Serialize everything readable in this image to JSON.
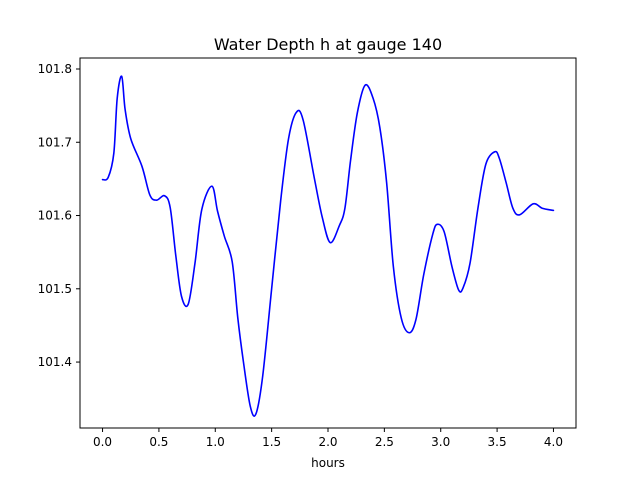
{
  "chart_data": {
    "type": "line",
    "title": "Water Depth h at gauge 140",
    "xlabel": "hours",
    "ylabel": "",
    "xlim": [
      -0.2,
      4.2
    ],
    "ylim": [
      101.31,
      101.815
    ],
    "x_ticks": [
      0.0,
      0.5,
      1.0,
      1.5,
      2.0,
      2.5,
      3.0,
      3.5,
      4.0
    ],
    "x_tick_labels": [
      "0.0",
      "0.5",
      "1.0",
      "1.5",
      "2.0",
      "2.5",
      "3.0",
      "3.5",
      "4.0"
    ],
    "y_ticks": [
      101.4,
      101.5,
      101.6,
      101.7,
      101.8
    ],
    "y_tick_labels": [
      "101.4",
      "101.5",
      "101.6",
      "101.7",
      "101.8"
    ],
    "grid": false,
    "legend": "none",
    "series": [
      {
        "color": "#0000ff",
        "x": [
          0.0,
          0.05,
          0.1,
          0.13,
          0.17,
          0.2,
          0.25,
          0.35,
          0.42,
          0.48,
          0.55,
          0.6,
          0.65,
          0.7,
          0.76,
          0.82,
          0.88,
          0.97,
          1.02,
          1.08,
          1.15,
          1.2,
          1.25,
          1.31,
          1.36,
          1.42,
          1.5,
          1.58,
          1.65,
          1.72,
          1.78,
          1.88,
          1.95,
          2.02,
          2.1,
          2.15,
          2.2,
          2.26,
          2.33,
          2.4,
          2.46,
          2.52,
          2.58,
          2.65,
          2.72,
          2.78,
          2.85,
          2.93,
          2.97,
          3.03,
          3.1,
          3.16,
          3.2,
          3.26,
          3.33,
          3.4,
          3.48,
          3.52,
          3.58,
          3.64,
          3.7,
          3.82,
          3.9,
          4.0
        ],
        "y": [
          101.649,
          101.652,
          101.685,
          101.76,
          101.79,
          101.745,
          101.705,
          101.667,
          101.628,
          101.621,
          101.627,
          101.611,
          101.545,
          101.49,
          101.479,
          101.535,
          101.608,
          101.64,
          101.606,
          101.572,
          101.537,
          101.46,
          101.4,
          101.34,
          101.329,
          101.38,
          101.5,
          101.62,
          101.705,
          101.741,
          101.73,
          101.65,
          101.597,
          101.563,
          101.586,
          101.61,
          101.675,
          101.74,
          101.778,
          101.76,
          101.72,
          101.645,
          101.53,
          101.46,
          101.44,
          101.458,
          101.52,
          101.575,
          101.588,
          101.578,
          101.53,
          101.498,
          101.502,
          101.535,
          101.61,
          101.67,
          101.687,
          101.678,
          101.645,
          101.61,
          101.601,
          101.616,
          101.61,
          101.607
        ]
      }
    ]
  }
}
